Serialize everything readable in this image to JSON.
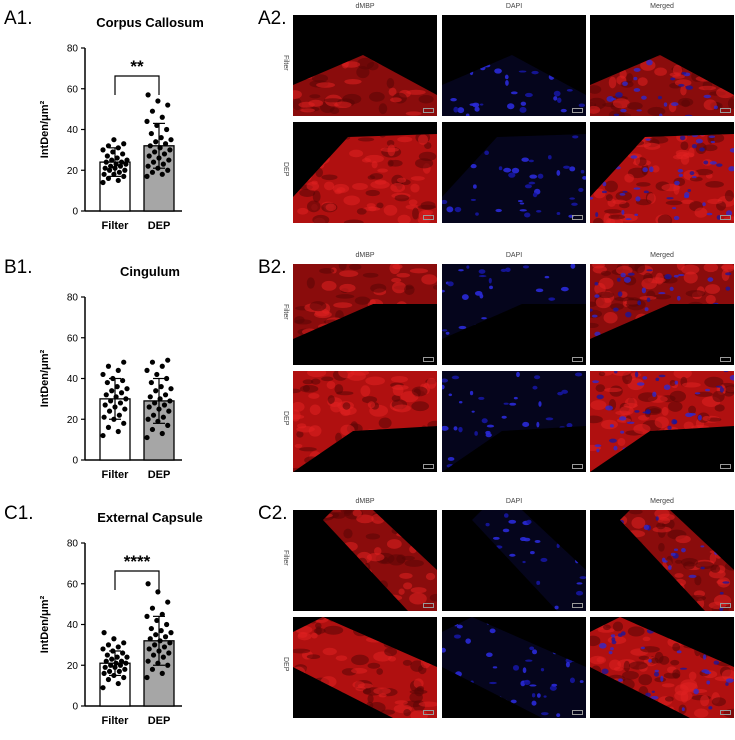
{
  "panels": [
    {
      "label_left": "A1.",
      "label_right": "A2.",
      "chart_data": {
        "type": "bar",
        "title": "Corpus Callosum",
        "ylabel": "IntDen/μm²",
        "categories": [
          "Filter",
          "DEP"
        ],
        "means": [
          24,
          32
        ],
        "sd": [
          7,
          11
        ],
        "ylim": [
          0,
          80
        ],
        "yticks": [
          0,
          20,
          40,
          60,
          80
        ],
        "bar_colors": [
          "#ffffff",
          "#a6a6a6"
        ],
        "significance": "**",
        "points": [
          [
            14,
            15,
            16,
            17,
            18,
            18,
            19,
            20,
            20,
            21,
            21,
            22,
            22,
            23,
            23,
            24,
            24,
            25,
            25,
            26,
            27,
            28,
            29,
            30,
            31,
            32,
            33,
            35
          ],
          [
            17,
            18,
            19,
            20,
            21,
            22,
            23,
            24,
            25,
            26,
            27,
            28,
            29,
            30,
            31,
            32,
            33,
            34,
            35,
            36,
            38,
            40,
            42,
            44,
            46,
            49,
            52,
            54,
            57
          ]
        ]
      },
      "micro": {
        "columns": [
          "dMBP",
          "DAPI",
          "Merged"
        ],
        "rows": [
          "Filter",
          "DEP"
        ]
      }
    },
    {
      "label_left": "B1.",
      "label_right": "B2.",
      "chart_data": {
        "type": "bar",
        "title": "Cingulum",
        "ylabel": "IntDen/μm²",
        "categories": [
          "Filter",
          "DEP"
        ],
        "means": [
          30,
          29
        ],
        "sd": [
          10,
          11
        ],
        "ylim": [
          0,
          80
        ],
        "yticks": [
          0,
          20,
          40,
          60,
          80
        ],
        "bar_colors": [
          "#ffffff",
          "#a6a6a6"
        ],
        "significance": "",
        "points": [
          [
            12,
            14,
            16,
            18,
            20,
            21,
            22,
            24,
            25,
            26,
            27,
            28,
            29,
            30,
            31,
            32,
            33,
            34,
            35,
            36,
            38,
            39,
            40,
            42,
            44,
            46,
            48
          ],
          [
            11,
            13,
            15,
            17,
            19,
            20,
            21,
            22,
            24,
            25,
            26,
            27,
            28,
            29,
            30,
            31,
            32,
            34,
            35,
            36,
            38,
            40,
            42,
            44,
            46,
            48,
            49
          ]
        ]
      },
      "micro": {
        "columns": [
          "dMBP",
          "DAPI",
          "Merged"
        ],
        "rows": [
          "Filter",
          "DEP"
        ]
      }
    },
    {
      "label_left": "C1.",
      "label_right": "C2.",
      "chart_data": {
        "type": "bar",
        "title": "External Capsule",
        "ylabel": "IntDen/μm²",
        "categories": [
          "Filter",
          "DEP"
        ],
        "means": [
          21,
          32
        ],
        "sd": [
          6,
          12
        ],
        "ylim": [
          0,
          80
        ],
        "yticks": [
          0,
          20,
          40,
          60,
          80
        ],
        "bar_colors": [
          "#ffffff",
          "#a6a6a6"
        ],
        "significance": "****",
        "points": [
          [
            9,
            11,
            13,
            14,
            15,
            16,
            17,
            17,
            18,
            19,
            19,
            20,
            20,
            21,
            21,
            22,
            22,
            23,
            24,
            24,
            25,
            26,
            27,
            28,
            29,
            30,
            31,
            33,
            36
          ],
          [
            14,
            16,
            18,
            20,
            21,
            22,
            24,
            25,
            26,
            27,
            28,
            29,
            30,
            31,
            32,
            33,
            34,
            35,
            36,
            37,
            38,
            40,
            42,
            44,
            45,
            48,
            51,
            56,
            60
          ]
        ]
      },
      "micro": {
        "columns": [
          "dMBP",
          "DAPI",
          "Merged"
        ],
        "rows": [
          "Filter",
          "DEP"
        ]
      }
    }
  ]
}
